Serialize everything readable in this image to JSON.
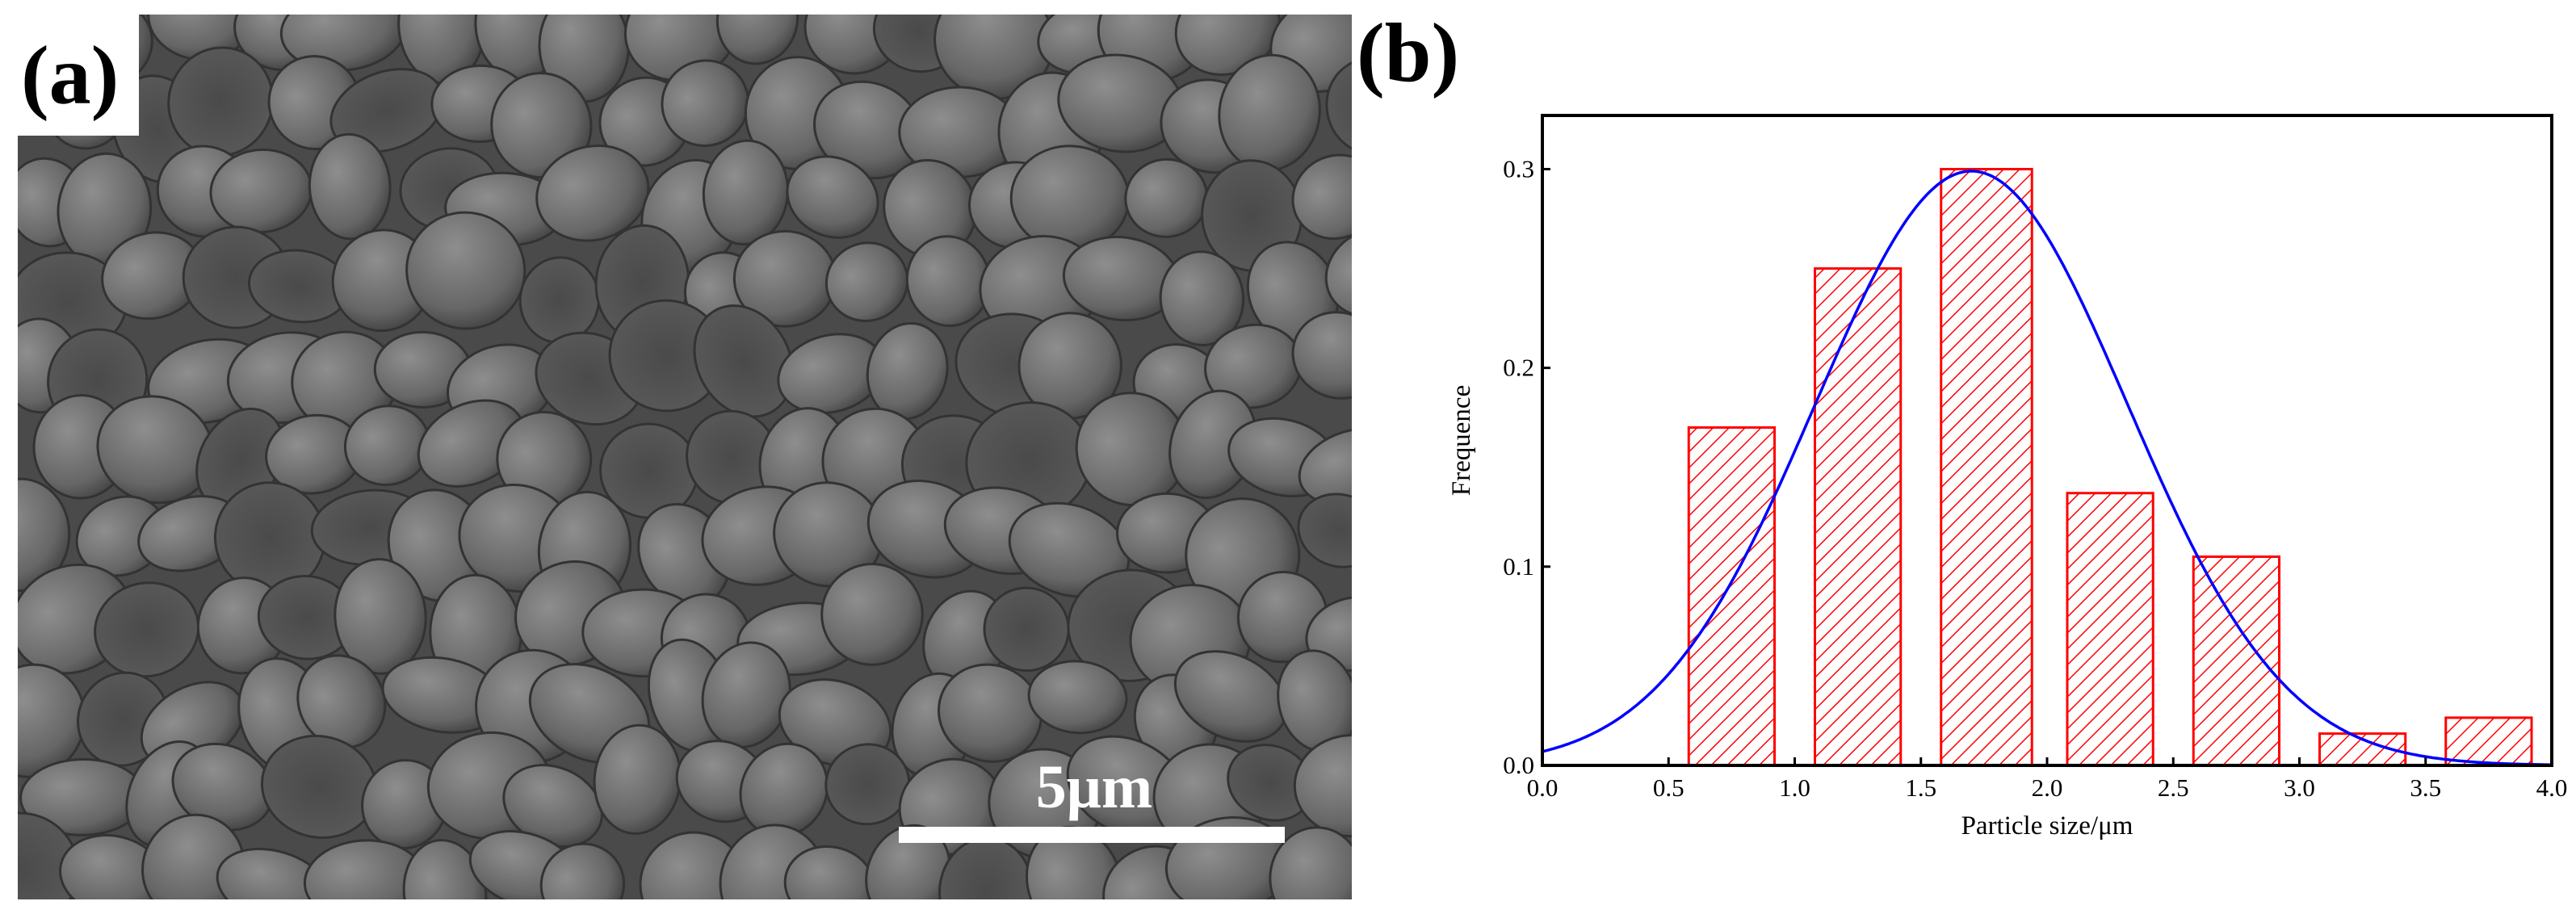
{
  "panels": {
    "a": {
      "label": "(a)",
      "scale_bar_label": "5μm"
    },
    "b": {
      "label": "(b)"
    }
  },
  "colors": {
    "bar_stroke": "#ff0000",
    "hatch": "#ff0000",
    "curve": "#0000ff",
    "axis": "#000000"
  },
  "chart_data": {
    "type": "bar",
    "title": "",
    "xlabel": "Particle size/μm",
    "ylabel": "Frequence",
    "xlim": [
      0.0,
      4.0
    ],
    "ylim": [
      0.0,
      0.3
    ],
    "xticks": [
      "0.0",
      "0.5",
      "1.0",
      "1.5",
      "2.0",
      "2.5",
      "3.0",
      "3.5",
      "4.0"
    ],
    "yticks": [
      "0.0",
      "0.1",
      "0.2",
      "0.3"
    ],
    "bars": [
      {
        "x0": 0.58,
        "x1": 0.92,
        "value": 0.17
      },
      {
        "x0": 1.08,
        "x1": 1.42,
        "value": 0.25
      },
      {
        "x0": 1.58,
        "x1": 1.94,
        "value": 0.3
      },
      {
        "x0": 2.08,
        "x1": 2.42,
        "value": 0.137
      },
      {
        "x0": 2.58,
        "x1": 2.92,
        "value": 0.105
      },
      {
        "x0": 3.08,
        "x1": 3.42,
        "value": 0.016
      },
      {
        "x0": 3.58,
        "x1": 3.92,
        "value": 0.024
      }
    ],
    "fit_curve": {
      "type": "gaussian",
      "mean": 1.7,
      "sigma": 0.62,
      "peak": 0.299
    },
    "bar_fill": "red diagonal hatch",
    "grid": false,
    "legend": "none"
  }
}
